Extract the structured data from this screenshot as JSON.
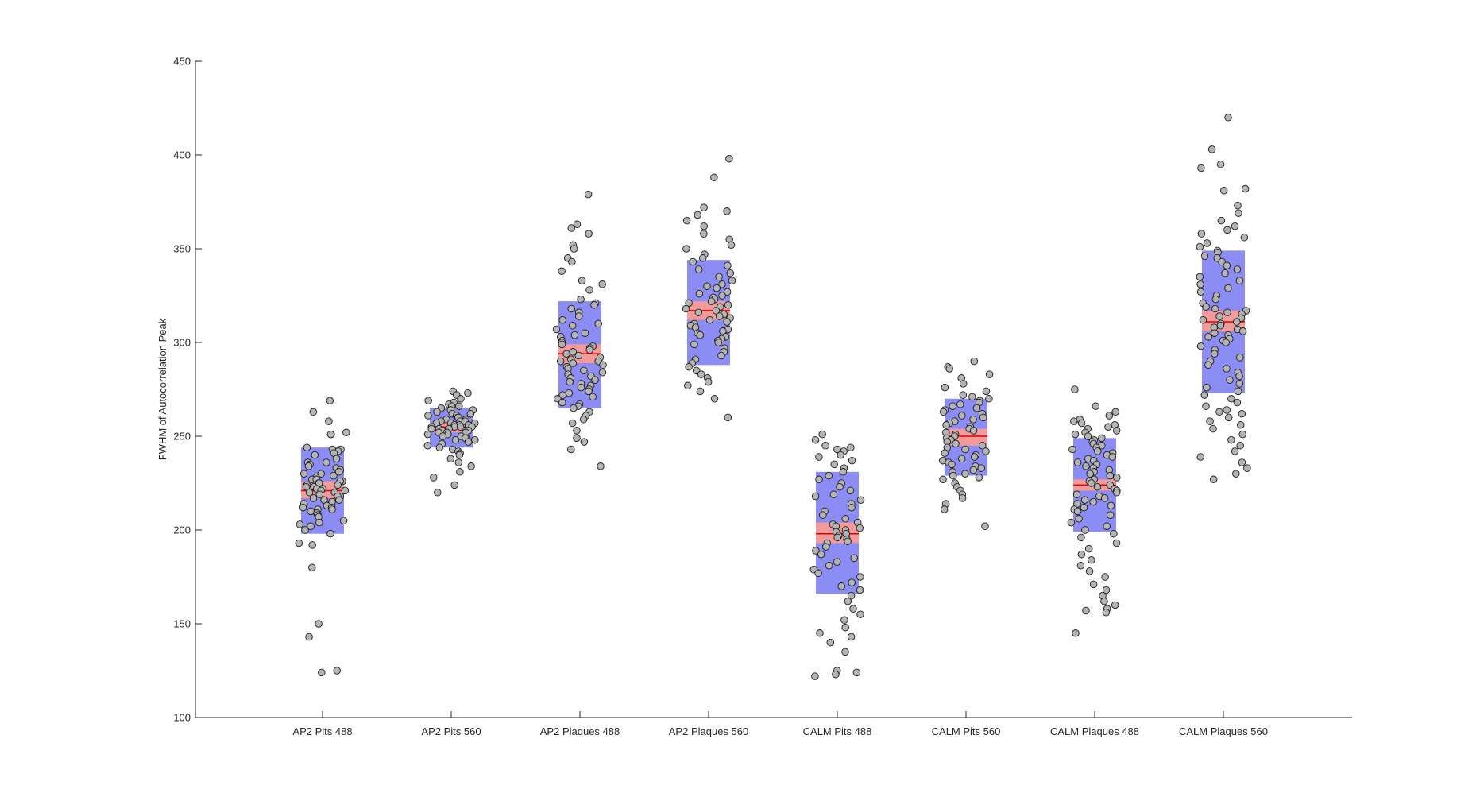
{
  "chart_data": {
    "type": "scatter",
    "subtype": "box-and-jitter",
    "title": "",
    "xlabel": "",
    "ylabel": "FWHM of Autocorrelation Peak",
    "ylim": [
      100,
      450
    ],
    "yticks": [
      100,
      150,
      200,
      250,
      300,
      350,
      400,
      450
    ],
    "grid": false,
    "colors": {
      "box_fill": "#8c8cf5",
      "ci_fill": "#f59a9a",
      "mean_line": "#e00000",
      "point_fill": "#b4b4b4",
      "point_edge": "#1a1a1a",
      "axis": "#262626"
    },
    "categories": [
      "AP2 Pits 488",
      "AP2 Pits 560",
      "AP2 Plaques 488",
      "AP2 Plaques 560",
      "CALM Pits 488",
      "CALM Pits 560",
      "CALM Plaques 488",
      "CALM Plaques 560"
    ],
    "groups": [
      {
        "name": "AP2 Pits 488",
        "sd_low": 198,
        "sd_high": 244,
        "ci_low": 217,
        "ci_high": 226,
        "mean": 221,
        "values": [
          269,
          263,
          258,
          252,
          251,
          251,
          244,
          243,
          243,
          242,
          241,
          240,
          238,
          236,
          236,
          235,
          234,
          233,
          232,
          231,
          230,
          230,
          229,
          228,
          227,
          227,
          226,
          226,
          225,
          225,
          224,
          224,
          223,
          223,
          222,
          222,
          221,
          221,
          220,
          220,
          219,
          218,
          218,
          217,
          216,
          216,
          215,
          214,
          213,
          212,
          212,
          211,
          211,
          210,
          209,
          208,
          207,
          205,
          204,
          203,
          202,
          200,
          198,
          193,
          192,
          180,
          150,
          143,
          125,
          124
        ]
      },
      {
        "name": "AP2 Pits 560",
        "sd_low": 244,
        "sd_high": 265,
        "ci_low": 252,
        "ci_high": 257,
        "mean": 255,
        "values": [
          274,
          273,
          272,
          270,
          269,
          268,
          267,
          266,
          266,
          265,
          264,
          264,
          263,
          262,
          262,
          261,
          261,
          260,
          260,
          259,
          259,
          258,
          258,
          258,
          257,
          257,
          257,
          256,
          256,
          256,
          255,
          255,
          255,
          255,
          254,
          254,
          254,
          253,
          253,
          253,
          252,
          252,
          252,
          251,
          251,
          250,
          250,
          249,
          249,
          248,
          248,
          247,
          246,
          245,
          244,
          243,
          242,
          241,
          240,
          238,
          236,
          234,
          231,
          228,
          224,
          220
        ]
      },
      {
        "name": "AP2 Plaques 488",
        "sd_low": 265,
        "sd_high": 322,
        "ci_low": 289,
        "ci_high": 299,
        "mean": 294,
        "values": [
          379,
          363,
          361,
          358,
          352,
          350,
          345,
          343,
          338,
          333,
          331,
          328,
          323,
          321,
          320,
          318,
          316,
          314,
          312,
          310,
          309,
          307,
          305,
          304,
          303,
          301,
          300,
          299,
          298,
          297,
          296,
          295,
          294,
          293,
          292,
          291,
          290,
          290,
          289,
          288,
          287,
          286,
          285,
          284,
          283,
          282,
          281,
          280,
          279,
          278,
          277,
          276,
          275,
          274,
          273,
          272,
          271,
          270,
          268,
          267,
          266,
          265,
          263,
          261,
          259,
          257,
          253,
          249,
          247,
          243,
          234
        ]
      },
      {
        "name": "AP2 Plaques 560",
        "sd_low": 288,
        "sd_high": 344,
        "ci_low": 312,
        "ci_high": 322,
        "mean": 317,
        "values": [
          398,
          388,
          372,
          370,
          368,
          365,
          362,
          358,
          355,
          352,
          350,
          347,
          345,
          343,
          341,
          339,
          337,
          335,
          333,
          331,
          330,
          329,
          327,
          326,
          325,
          324,
          323,
          322,
          321,
          320,
          319,
          318,
          317,
          316,
          315,
          314,
          313,
          312,
          311,
          310,
          309,
          308,
          307,
          306,
          305,
          304,
          303,
          302,
          301,
          300,
          299,
          297,
          295,
          293,
          291,
          289,
          287,
          285,
          283,
          281,
          279,
          277,
          274,
          270,
          260
        ]
      },
      {
        "name": "CALM Pits 488",
        "sd_low": 166,
        "sd_high": 231,
        "ci_low": 193,
        "ci_high": 204,
        "mean": 198,
        "values": [
          251,
          248,
          245,
          244,
          243,
          242,
          240,
          239,
          237,
          235,
          233,
          231,
          229,
          227,
          225,
          223,
          221,
          219,
          218,
          216,
          214,
          212,
          210,
          208,
          206,
          204,
          203,
          202,
          201,
          200,
          199,
          198,
          197,
          196,
          195,
          194,
          193,
          191,
          189,
          187,
          185,
          183,
          181,
          179,
          177,
          175,
          172,
          170,
          168,
          165,
          162,
          158,
          155,
          152,
          148,
          145,
          143,
          140,
          135,
          125,
          124,
          123,
          122
        ]
      },
      {
        "name": "CALM Pits 560",
        "sd_low": 229,
        "sd_high": 270,
        "ci_low": 245,
        "ci_high": 254,
        "mean": 250,
        "values": [
          290,
          287,
          286,
          283,
          281,
          278,
          276,
          274,
          272,
          271,
          270,
          269,
          268,
          267,
          266,
          265,
          264,
          263,
          262,
          261,
          260,
          259,
          258,
          257,
          256,
          255,
          254,
          253,
          252,
          251,
          250,
          249,
          248,
          247,
          246,
          245,
          244,
          243,
          242,
          241,
          240,
          239,
          238,
          237,
          236,
          235,
          234,
          233,
          232,
          231,
          230,
          229,
          228,
          227,
          225,
          223,
          221,
          219,
          217,
          214,
          211,
          202
        ]
      },
      {
        "name": "CALM Plaques 488",
        "sd_low": 199,
        "sd_high": 249,
        "ci_low": 221,
        "ci_high": 227,
        "mean": 224,
        "values": [
          275,
          266,
          263,
          261,
          259,
          258,
          257,
          256,
          255,
          254,
          253,
          252,
          251,
          250,
          249,
          248,
          247,
          246,
          245,
          244,
          243,
          242,
          241,
          240,
          239,
          238,
          237,
          236,
          235,
          234,
          233,
          232,
          231,
          230,
          229,
          228,
          227,
          226,
          225,
          224,
          223,
          222,
          221,
          220,
          219,
          218,
          217,
          216,
          215,
          214,
          213,
          212,
          211,
          210,
          208,
          206,
          204,
          202,
          200,
          198,
          196,
          193,
          190,
          187,
          184,
          181,
          178,
          175,
          171,
          168,
          165,
          162,
          160,
          158,
          157,
          156,
          145
        ]
      },
      {
        "name": "CALM Plaques 560",
        "sd_low": 273,
        "sd_high": 349,
        "ci_low": 306,
        "ci_high": 317,
        "mean": 311,
        "values": [
          420,
          403,
          395,
          393,
          382,
          381,
          373,
          369,
          365,
          362,
          360,
          358,
          356,
          353,
          351,
          349,
          348,
          346,
          345,
          343,
          341,
          339,
          337,
          335,
          333,
          331,
          329,
          327,
          325,
          323,
          321,
          319,
          318,
          317,
          316,
          315,
          314,
          313,
          312,
          311,
          310,
          309,
          308,
          307,
          306,
          305,
          304,
          303,
          302,
          301,
          300,
          298,
          296,
          294,
          292,
          290,
          288,
          286,
          284,
          282,
          280,
          278,
          276,
          274,
          272,
          270,
          268,
          266,
          264,
          263,
          262,
          260,
          258,
          256,
          254,
          251,
          248,
          245,
          242,
          239,
          236,
          233,
          230,
          227
        ]
      }
    ]
  }
}
